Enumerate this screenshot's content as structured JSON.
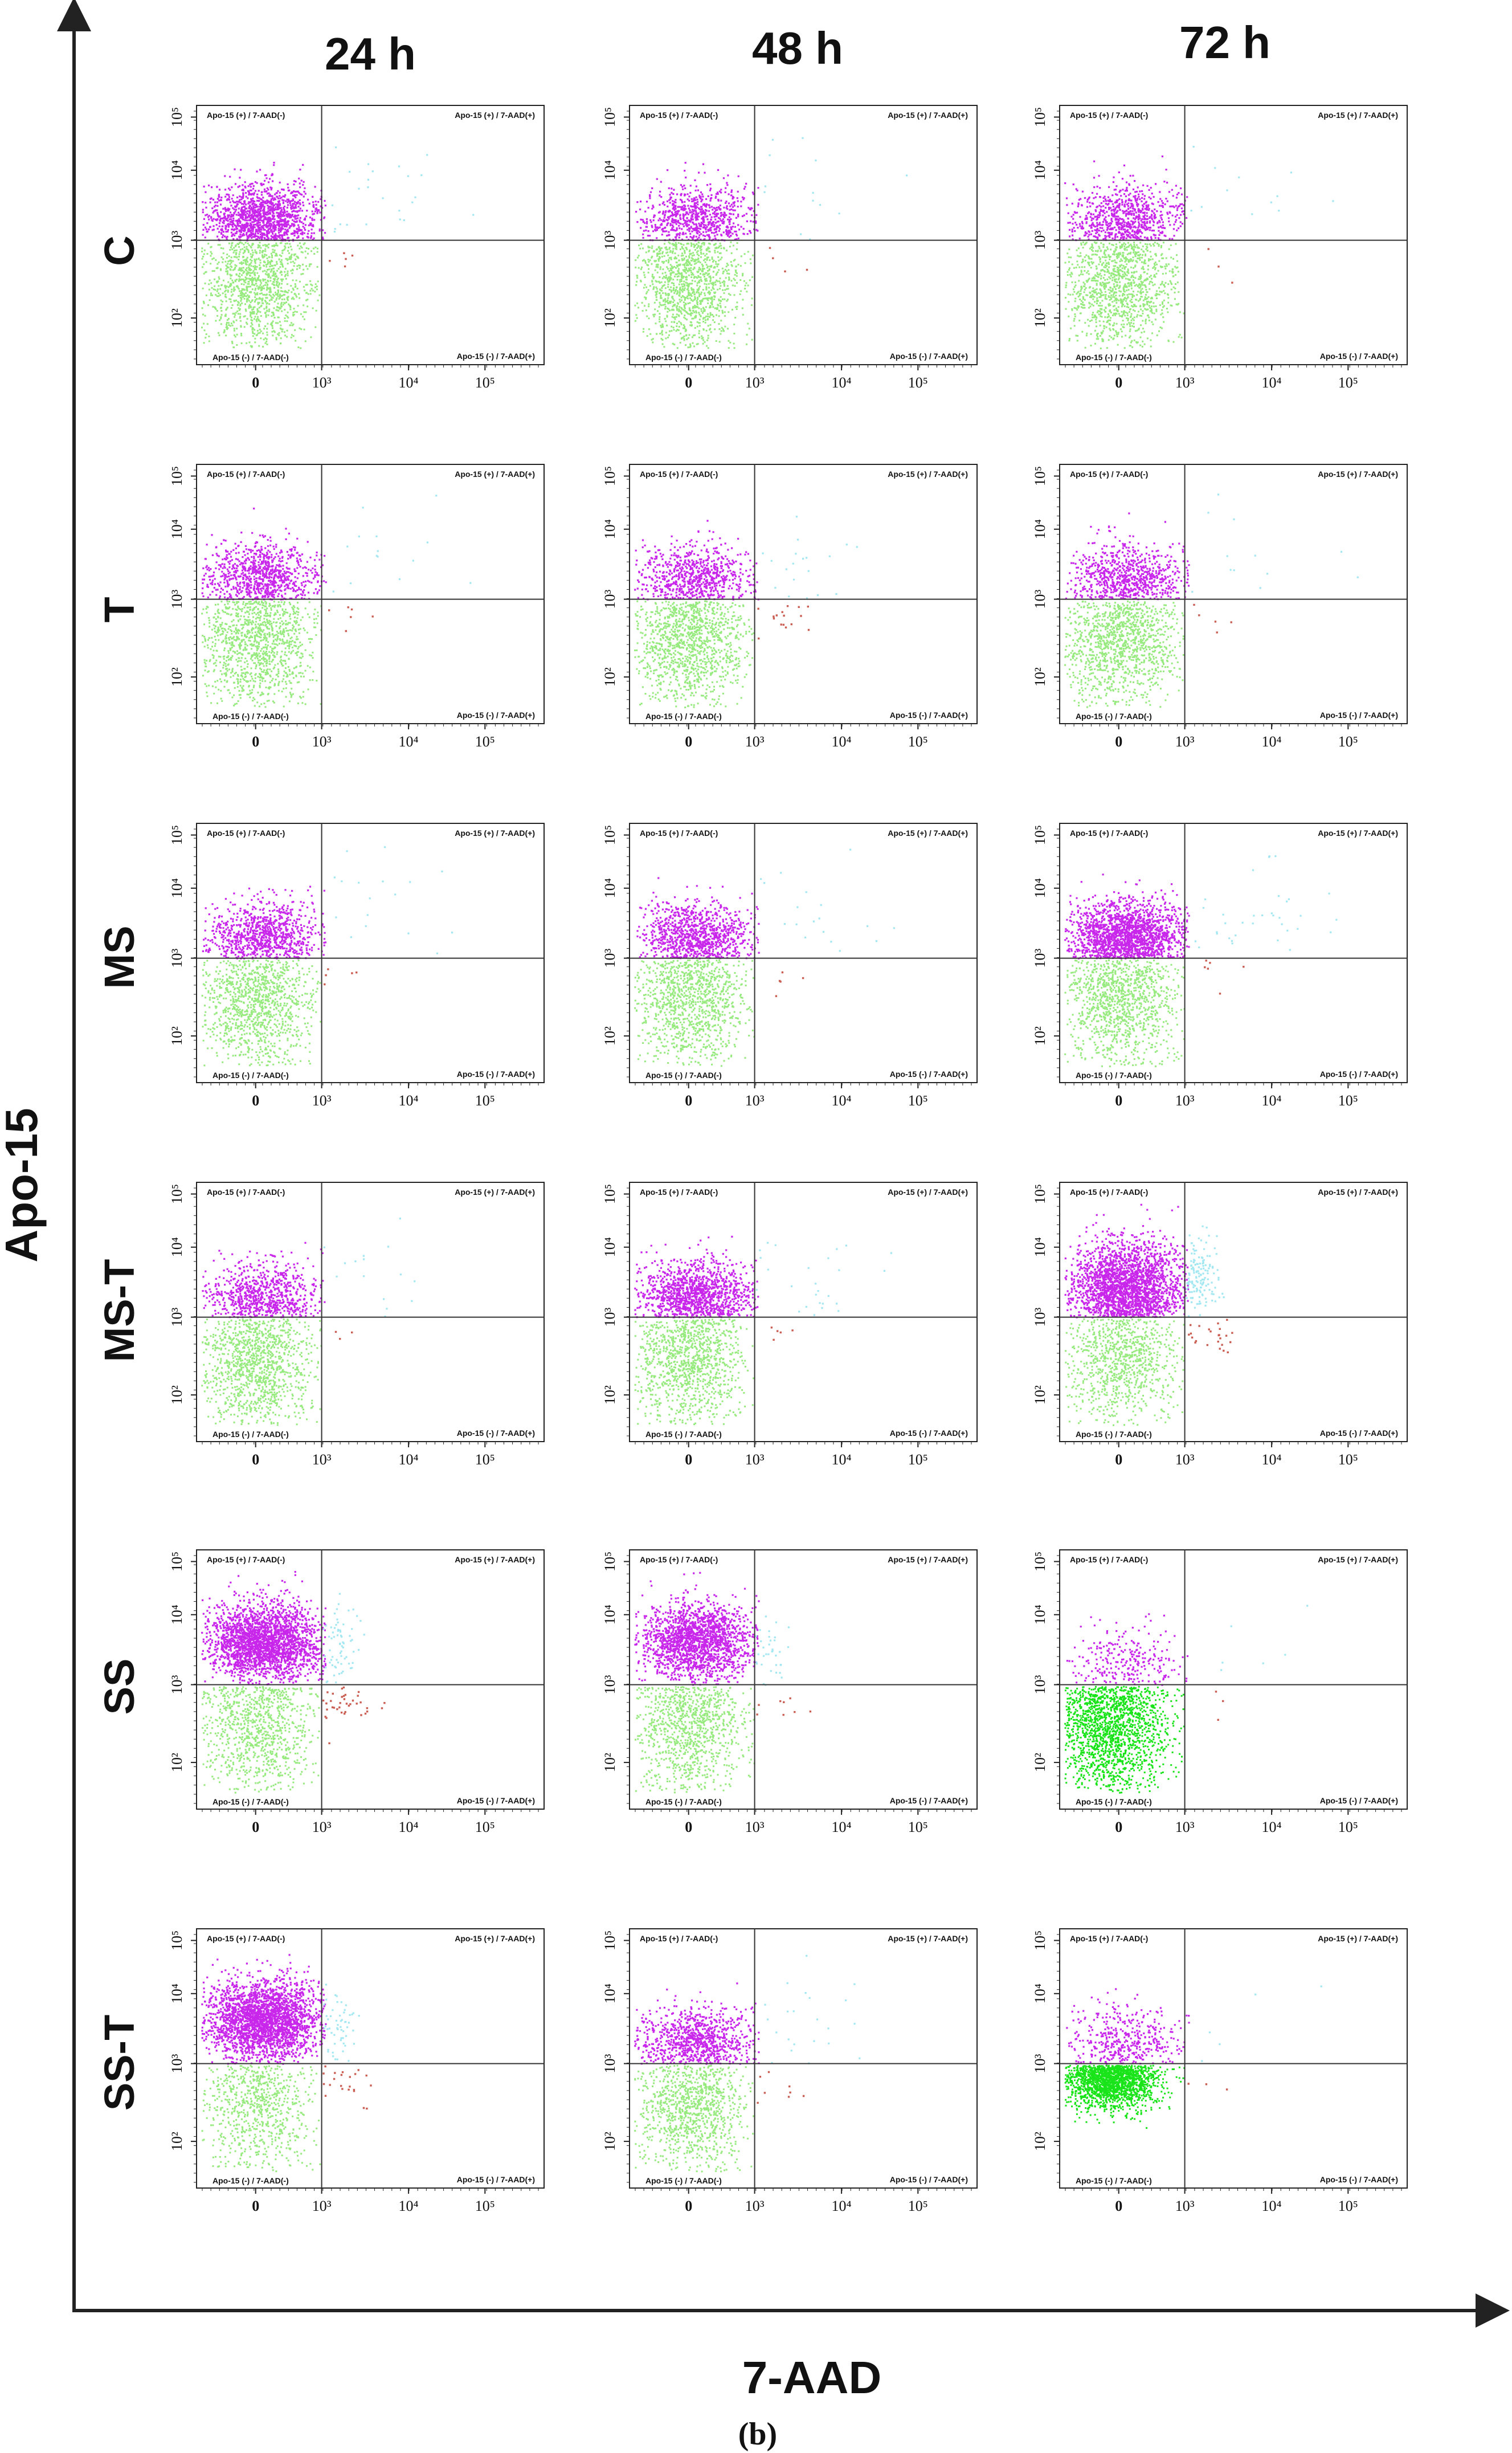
{
  "figure": {
    "y_axis_title": "Apo-15",
    "x_axis_title": "7-AAD",
    "panel_label": "(b)",
    "time_points": [
      "24 h",
      "48 h",
      "72 h"
    ],
    "treatments": [
      "C",
      "T",
      "MS",
      "MS-T",
      "SS",
      "SS-T"
    ],
    "colors": {
      "apoptotic": "#c000e8",
      "viable": "#8be870",
      "viable_dense": "#00e000",
      "late": "#9de6f0",
      "necrotic": "#c8554a",
      "axis": "#222222"
    }
  },
  "chart_data": {
    "type": "scatter",
    "plot_kind": "flow-cytometry quadrant dot plot",
    "xlabel": "7-AAD",
    "ylabel": "Apo-15",
    "x_gate": 1000,
    "y_gate": 1000,
    "quadrant_labels": {
      "upper_left": "Apo-15 (+) / 7-AAD(-)",
      "upper_right": "Apo-15 (+) / 7-AAD(+)",
      "lower_left": "Apo-15 (-) / 7-AAD(-)",
      "lower_right": "Apo-15 (-) / 7-AAD(+)"
    },
    "x_ticks": [
      "0",
      "10³",
      "10⁴",
      "10⁵"
    ],
    "y_ticks": [
      "10²",
      "10³",
      "10⁴",
      "10⁵"
    ],
    "panels": [
      {
        "treatment": "C",
        "time": "24 h",
        "apoptotic_density": 0.6,
        "viable_density": 0.65,
        "late_events": 30,
        "necrotic_events": 6,
        "pattern": "standard"
      },
      {
        "treatment": "C",
        "time": "48 h",
        "apoptotic_density": 0.35,
        "viable_density": 0.65,
        "late_events": 15,
        "necrotic_events": 4,
        "pattern": "standard"
      },
      {
        "treatment": "C",
        "time": "72 h",
        "apoptotic_density": 0.35,
        "viable_density": 0.65,
        "late_events": 15,
        "necrotic_events": 3,
        "pattern": "standard"
      },
      {
        "treatment": "T",
        "time": "24 h",
        "apoptotic_density": 0.4,
        "viable_density": 0.65,
        "late_events": 20,
        "necrotic_events": 6,
        "pattern": "standard"
      },
      {
        "treatment": "T",
        "time": "48 h",
        "apoptotic_density": 0.35,
        "viable_density": 0.65,
        "late_events": 25,
        "necrotic_events": 18,
        "pattern": "standard"
      },
      {
        "treatment": "T",
        "time": "72 h",
        "apoptotic_density": 0.35,
        "viable_density": 0.65,
        "late_events": 20,
        "necrotic_events": 5,
        "pattern": "standard"
      },
      {
        "treatment": "MS",
        "time": "24 h",
        "apoptotic_density": 0.4,
        "viable_density": 0.6,
        "late_events": 20,
        "necrotic_events": 5,
        "pattern": "standard"
      },
      {
        "treatment": "MS",
        "time": "48 h",
        "apoptotic_density": 0.45,
        "viable_density": 0.6,
        "late_events": 20,
        "necrotic_events": 5,
        "pattern": "standard"
      },
      {
        "treatment": "MS",
        "time": "72 h",
        "apoptotic_density": 0.8,
        "viable_density": 0.6,
        "late_events": 45,
        "necrotic_events": 10,
        "pattern": "standard"
      },
      {
        "treatment": "MS-T",
        "time": "24 h",
        "apoptotic_density": 0.35,
        "viable_density": 0.65,
        "late_events": 20,
        "necrotic_events": 4,
        "pattern": "standard"
      },
      {
        "treatment": "MS-T",
        "time": "48 h",
        "apoptotic_density": 0.55,
        "viable_density": 0.6,
        "late_events": 35,
        "necrotic_events": 8,
        "pattern": "standard"
      },
      {
        "treatment": "MS-T",
        "time": "72 h",
        "apoptotic_density": 1.0,
        "viable_density": 0.5,
        "late_events": 160,
        "necrotic_events": 30,
        "pattern": "high"
      },
      {
        "treatment": "SS",
        "time": "24 h",
        "apoptotic_density": 0.95,
        "viable_density": 0.5,
        "late_events": 80,
        "necrotic_events": 45,
        "pattern": "shift"
      },
      {
        "treatment": "SS",
        "time": "48 h",
        "apoptotic_density": 0.7,
        "viable_density": 0.55,
        "late_events": 40,
        "necrotic_events": 10,
        "pattern": "shift"
      },
      {
        "treatment": "SS",
        "time": "72 h",
        "apoptotic_density": 0.12,
        "viable_density": 0.95,
        "late_events": 8,
        "necrotic_events": 5,
        "pattern": "dense-low"
      },
      {
        "treatment": "SS-T",
        "time": "24 h",
        "apoptotic_density": 1.0,
        "viable_density": 0.4,
        "late_events": 60,
        "necrotic_events": 25,
        "pattern": "shift"
      },
      {
        "treatment": "SS-T",
        "time": "48 h",
        "apoptotic_density": 0.4,
        "viable_density": 0.55,
        "late_events": 25,
        "necrotic_events": 8,
        "pattern": "standard"
      },
      {
        "treatment": "SS-T",
        "time": "72 h",
        "apoptotic_density": 0.18,
        "viable_density": 0.95,
        "late_events": 6,
        "necrotic_events": 3,
        "pattern": "compact"
      }
    ]
  }
}
